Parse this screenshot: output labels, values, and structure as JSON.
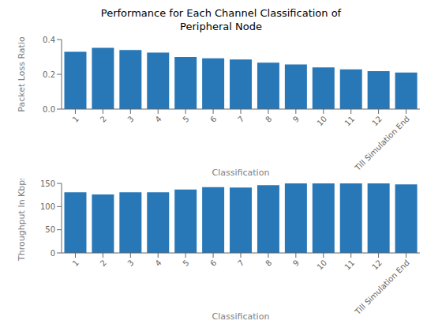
{
  "chart_data": [
    {
      "type": "bar",
      "title": "Performance for Each Channel Classification of\nPeripheral Node",
      "categories": [
        "1",
        "2",
        "3",
        "4",
        "5",
        "6",
        "7",
        "8",
        "9",
        "10",
        "11",
        "12",
        "Till Simulation End"
      ],
      "values": [
        0.33,
        0.352,
        0.34,
        0.325,
        0.3,
        0.292,
        0.285,
        0.267,
        0.257,
        0.24,
        0.228,
        0.218,
        0.21
      ],
      "color": "#2878b8",
      "xlabel": "Classification",
      "ylabel": "Packet Loss Ratio",
      "ylim": [
        0,
        0.4
      ],
      "yticks": [
        {
          "value": 0,
          "label": "0.0"
        },
        0.2,
        0.4
      ],
      "grid": false
    },
    {
      "type": "bar",
      "categories": [
        "1",
        "2",
        "3",
        "4",
        "5",
        "6",
        "7",
        "8",
        "9",
        "10",
        "11",
        "12",
        "Till Simulation End"
      ],
      "values": [
        131,
        126,
        131,
        131,
        137,
        142,
        141,
        146,
        150,
        150,
        150,
        150,
        148
      ],
      "color": "#2878b8",
      "xlabel": "Classification",
      "ylabel": "Throughput In Kbps",
      "ylim": [
        0,
        150
      ],
      "yticks": [
        0,
        50,
        100,
        150
      ],
      "grid": false
    }
  ]
}
